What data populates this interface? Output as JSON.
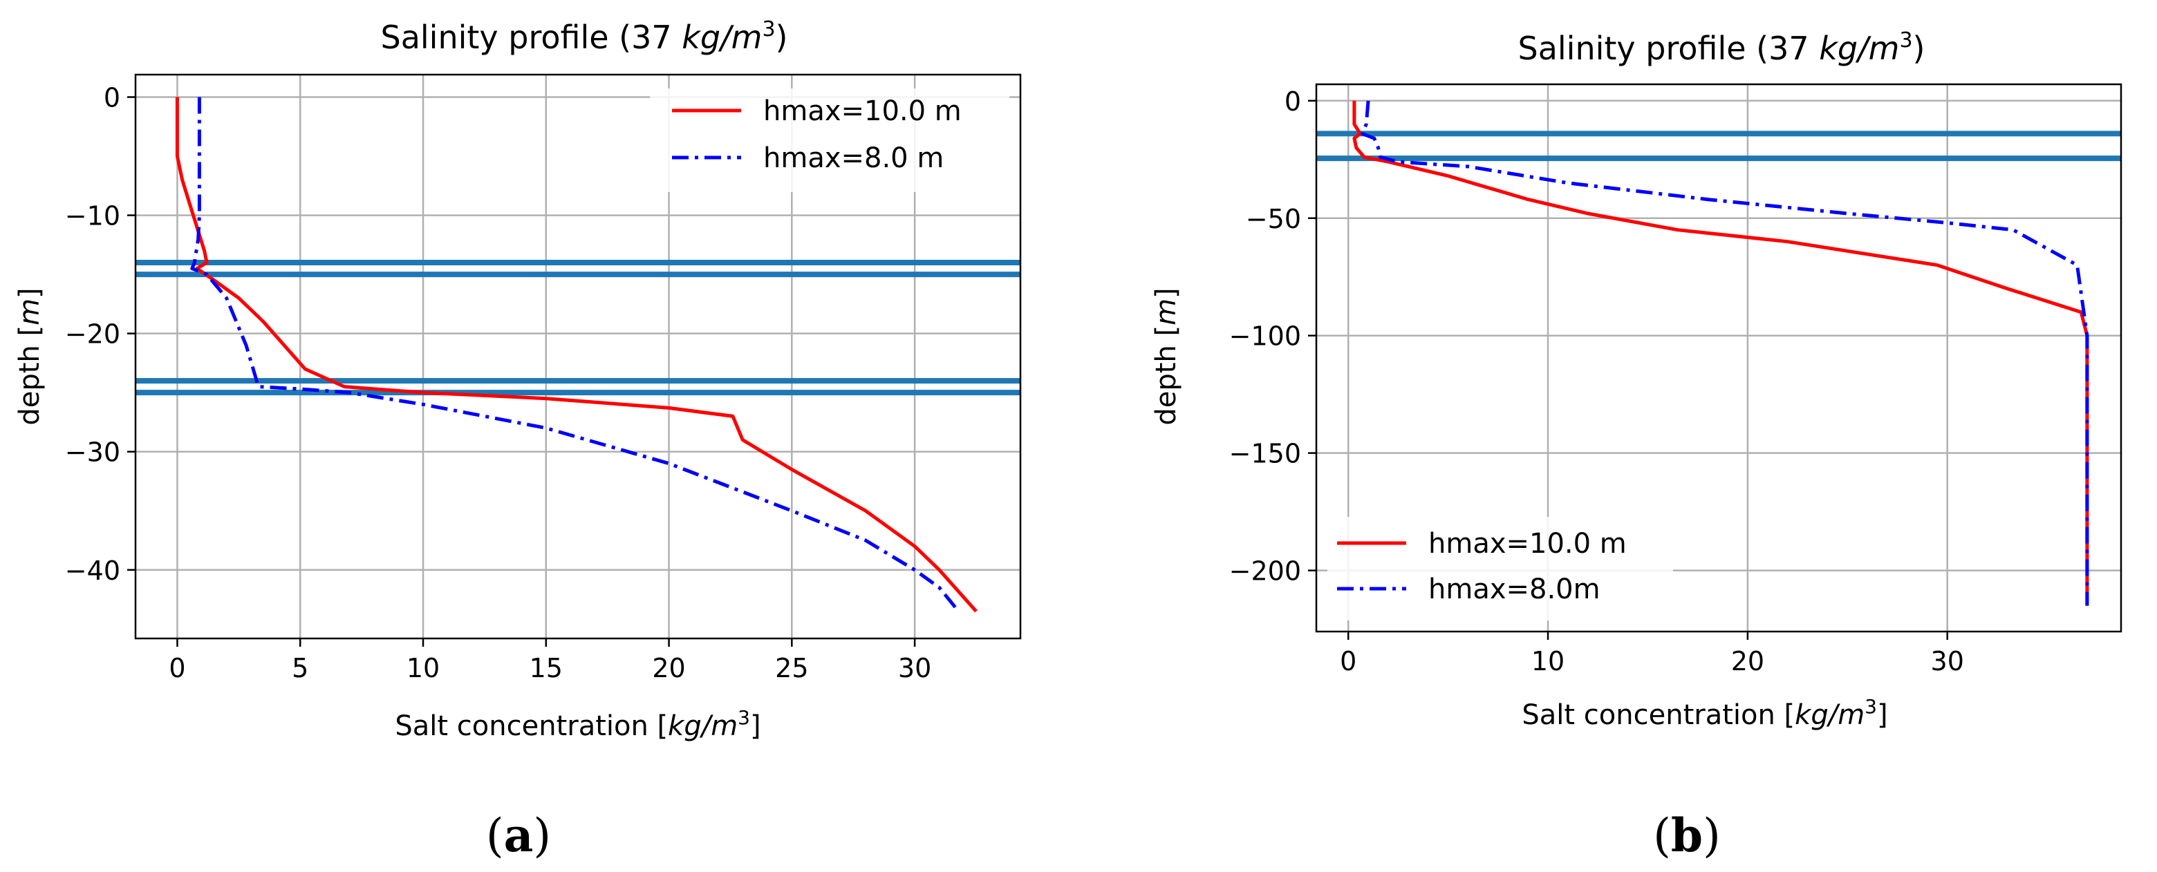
{
  "chart_data": [
    {
      "type": "line",
      "panel": "a",
      "caption": "a",
      "title": "Salinity profile (37 ",
      "title_unit_kg": "kg",
      "title_unit_m": "m",
      "title_unit_exp": "3",
      "title_close": ")",
      "xlabel": "Salt concentration [",
      "xlabel_unit_kg": "kg",
      "xlabel_unit_m": "m",
      "xlabel_unit_exp": "3",
      "xlabel_close": "]",
      "ylabel": "depth [",
      "ylabel_unit": "m",
      "ylabel_close": "]",
      "xlim": [
        -1.7,
        34.3
      ],
      "ylim": [
        -45.8,
        1.9
      ],
      "xticks": [
        0,
        5,
        10,
        15,
        20,
        25,
        30
      ],
      "yticks": [
        0,
        -10,
        -20,
        -30,
        -40
      ],
      "grid": true,
      "legend_position": "top-right",
      "hlines": [
        -14,
        -15,
        -24,
        -25
      ],
      "hline_color": "#1f77b4",
      "series": [
        {
          "name": "hmax=10.0 m",
          "color": "#ff0000",
          "style": "solid",
          "points": [
            [
              0,
              0
            ],
            [
              0,
              -5
            ],
            [
              0.2,
              -7
            ],
            [
              0.5,
              -9
            ],
            [
              0.8,
              -11
            ],
            [
              1.1,
              -13
            ],
            [
              1.2,
              -14
            ],
            [
              0.8,
              -14.5
            ],
            [
              1.5,
              -15.5
            ],
            [
              2.5,
              -17
            ],
            [
              3.5,
              -19
            ],
            [
              5.2,
              -23
            ],
            [
              6.8,
              -24.5
            ],
            [
              10,
              -25
            ],
            [
              15,
              -25.5
            ],
            [
              20,
              -26.3
            ],
            [
              22.6,
              -27
            ],
            [
              23.0,
              -29
            ],
            [
              25,
              -31.5
            ],
            [
              28,
              -35
            ],
            [
              30,
              -38
            ],
            [
              31,
              -40
            ],
            [
              32.5,
              -43.5
            ]
          ]
        },
        {
          "name": "hmax=8.0 m",
          "color": "#0000ff",
          "style": "dashdot",
          "points": [
            [
              0.9,
              0
            ],
            [
              0.9,
              -5
            ],
            [
              0.9,
              -10
            ],
            [
              0.85,
              -12
            ],
            [
              0.7,
              -14
            ],
            [
              0.6,
              -14.5
            ],
            [
              1.2,
              -15
            ],
            [
              2.0,
              -17
            ],
            [
              2.8,
              -21
            ],
            [
              3.3,
              -24.5
            ],
            [
              5,
              -24.7
            ],
            [
              7,
              -25
            ],
            [
              10,
              -26
            ],
            [
              15,
              -28
            ],
            [
              20,
              -31
            ],
            [
              25,
              -35
            ],
            [
              28,
              -37.5
            ],
            [
              30,
              -40
            ],
            [
              31,
              -41.5
            ],
            [
              31.7,
              -43.3
            ]
          ]
        }
      ]
    },
    {
      "type": "line",
      "panel": "b",
      "caption": "b",
      "title": "Salinity profile (37 ",
      "title_unit_kg": "kg",
      "title_unit_m": "m",
      "title_unit_exp": "3",
      "title_close": ")",
      "xlabel": "Salt concentration [",
      "xlabel_unit_kg": "kg",
      "xlabel_unit_m": "m",
      "xlabel_unit_exp": "3",
      "xlabel_close": "]",
      "ylabel": "depth [",
      "ylabel_unit": "m",
      "ylabel_close": "]",
      "xlim": [
        -1.6,
        38.7
      ],
      "ylim": [
        -226,
        7
      ],
      "xticks": [
        0,
        10,
        20,
        30
      ],
      "yticks": [
        0,
        -50,
        -100,
        -150,
        -200
      ],
      "grid": true,
      "legend_position": "bottom-left",
      "hlines": [
        -14,
        -24.5
      ],
      "hline_color": "#1f77b4",
      "series": [
        {
          "name": "hmax=10.0 m",
          "color": "#ff0000",
          "style": "solid",
          "points": [
            [
              0.3,
              0
            ],
            [
              0.3,
              -10
            ],
            [
              0.6,
              -14
            ],
            [
              0.3,
              -16
            ],
            [
              0.4,
              -20
            ],
            [
              0.8,
              -24
            ],
            [
              2,
              -26
            ],
            [
              5,
              -32
            ],
            [
              9,
              -42
            ],
            [
              12,
              -48
            ],
            [
              16.5,
              -55
            ],
            [
              22,
              -60
            ],
            [
              29.5,
              -70
            ],
            [
              33,
              -80
            ],
            [
              36.7,
              -90
            ],
            [
              37,
              -100
            ],
            [
              37,
              -150
            ],
            [
              37,
              -215
            ]
          ]
        },
        {
          "name": "hmax=8.0m",
          "color": "#0000ff",
          "style": "dashdot",
          "points": [
            [
              1.0,
              0
            ],
            [
              0.9,
              -10
            ],
            [
              0.7,
              -14
            ],
            [
              1.3,
              -16
            ],
            [
              1.5,
              -20
            ],
            [
              1.6,
              -24
            ],
            [
              2.5,
              -26
            ],
            [
              6,
              -28
            ],
            [
              11,
              -35
            ],
            [
              18,
              -42
            ],
            [
              25,
              -48
            ],
            [
              30,
              -52
            ],
            [
              33.3,
              -55
            ],
            [
              36.5,
              -70
            ],
            [
              37,
              -100
            ],
            [
              37,
              -150
            ],
            [
              37,
              -215
            ]
          ]
        }
      ]
    }
  ]
}
